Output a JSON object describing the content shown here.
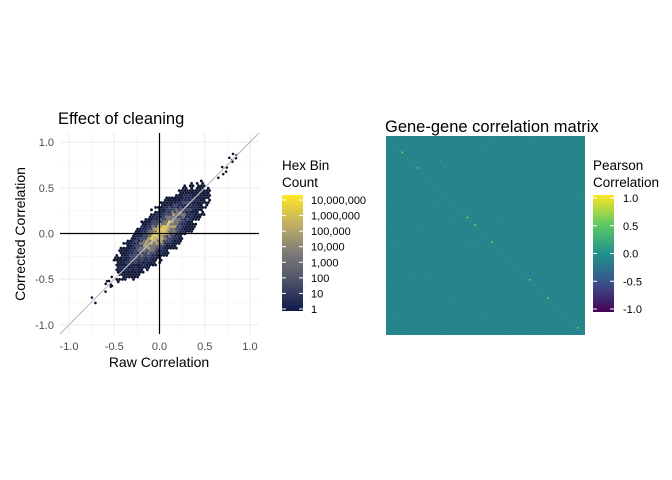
{
  "chart_data": [
    {
      "type": "hexbin",
      "title": "Effect of cleaning",
      "xlabel": "Raw Correlation",
      "ylabel": "Corrected Correlation",
      "xlim": [
        -1.1,
        1.1
      ],
      "ylim": [
        -1.1,
        1.1
      ],
      "xticks": [
        -1.0,
        -0.5,
        0.0,
        0.5,
        1.0
      ],
      "yticks": [
        -1.0,
        -0.5,
        0.0,
        0.5,
        1.0
      ],
      "xtick_labels": [
        "-1.0",
        "-0.5",
        "0.0",
        "0.5",
        "1.0"
      ],
      "ytick_labels": [
        "-1.0",
        "-0.5",
        "0.0",
        "0.5",
        "1.0"
      ],
      "grid": true,
      "reference_lines": {
        "identity": "y = x",
        "hline": 0,
        "vline": 0
      },
      "cloud": {
        "x_range": [
          -0.45,
          0.55
        ],
        "y_range": [
          -0.8,
          0.85
        ],
        "slope": 1.0
      },
      "legend": {
        "title": "Hex Bin\nCount",
        "scale": "log10",
        "labels": [
          "10,000,000",
          "1,000,000",
          "100,000",
          "10,000",
          "1,000",
          "100",
          "10",
          "1"
        ],
        "values": [
          10000000,
          1000000,
          100000,
          10000,
          1000,
          100,
          10,
          1
        ],
        "placement": "right",
        "colors": [
          "#0d1b4c",
          "#2b3a67",
          "#575d6d",
          "#7c7b78",
          "#a59c74",
          "#cdb95f",
          "#f0d63a",
          "#fde725"
        ]
      }
    },
    {
      "type": "heatmap",
      "title": "Gene-gene correlation matrix",
      "xlabel": "",
      "ylabel": "",
      "base_value": 0.0,
      "base_color": "#26848d",
      "legend": {
        "title": "Pearson\nCorrelation",
        "labels": [
          "1.0",
          "0.5",
          "0.0",
          "-0.5",
          "-1.0"
        ],
        "values": [
          1.0,
          0.5,
          0.0,
          -0.5,
          -1.0
        ],
        "range": [
          -1.0,
          1.0
        ],
        "placement": "right",
        "colors": [
          "#440154",
          "#3b528b",
          "#21918c",
          "#5ec962",
          "#fde725"
        ]
      }
    }
  ]
}
